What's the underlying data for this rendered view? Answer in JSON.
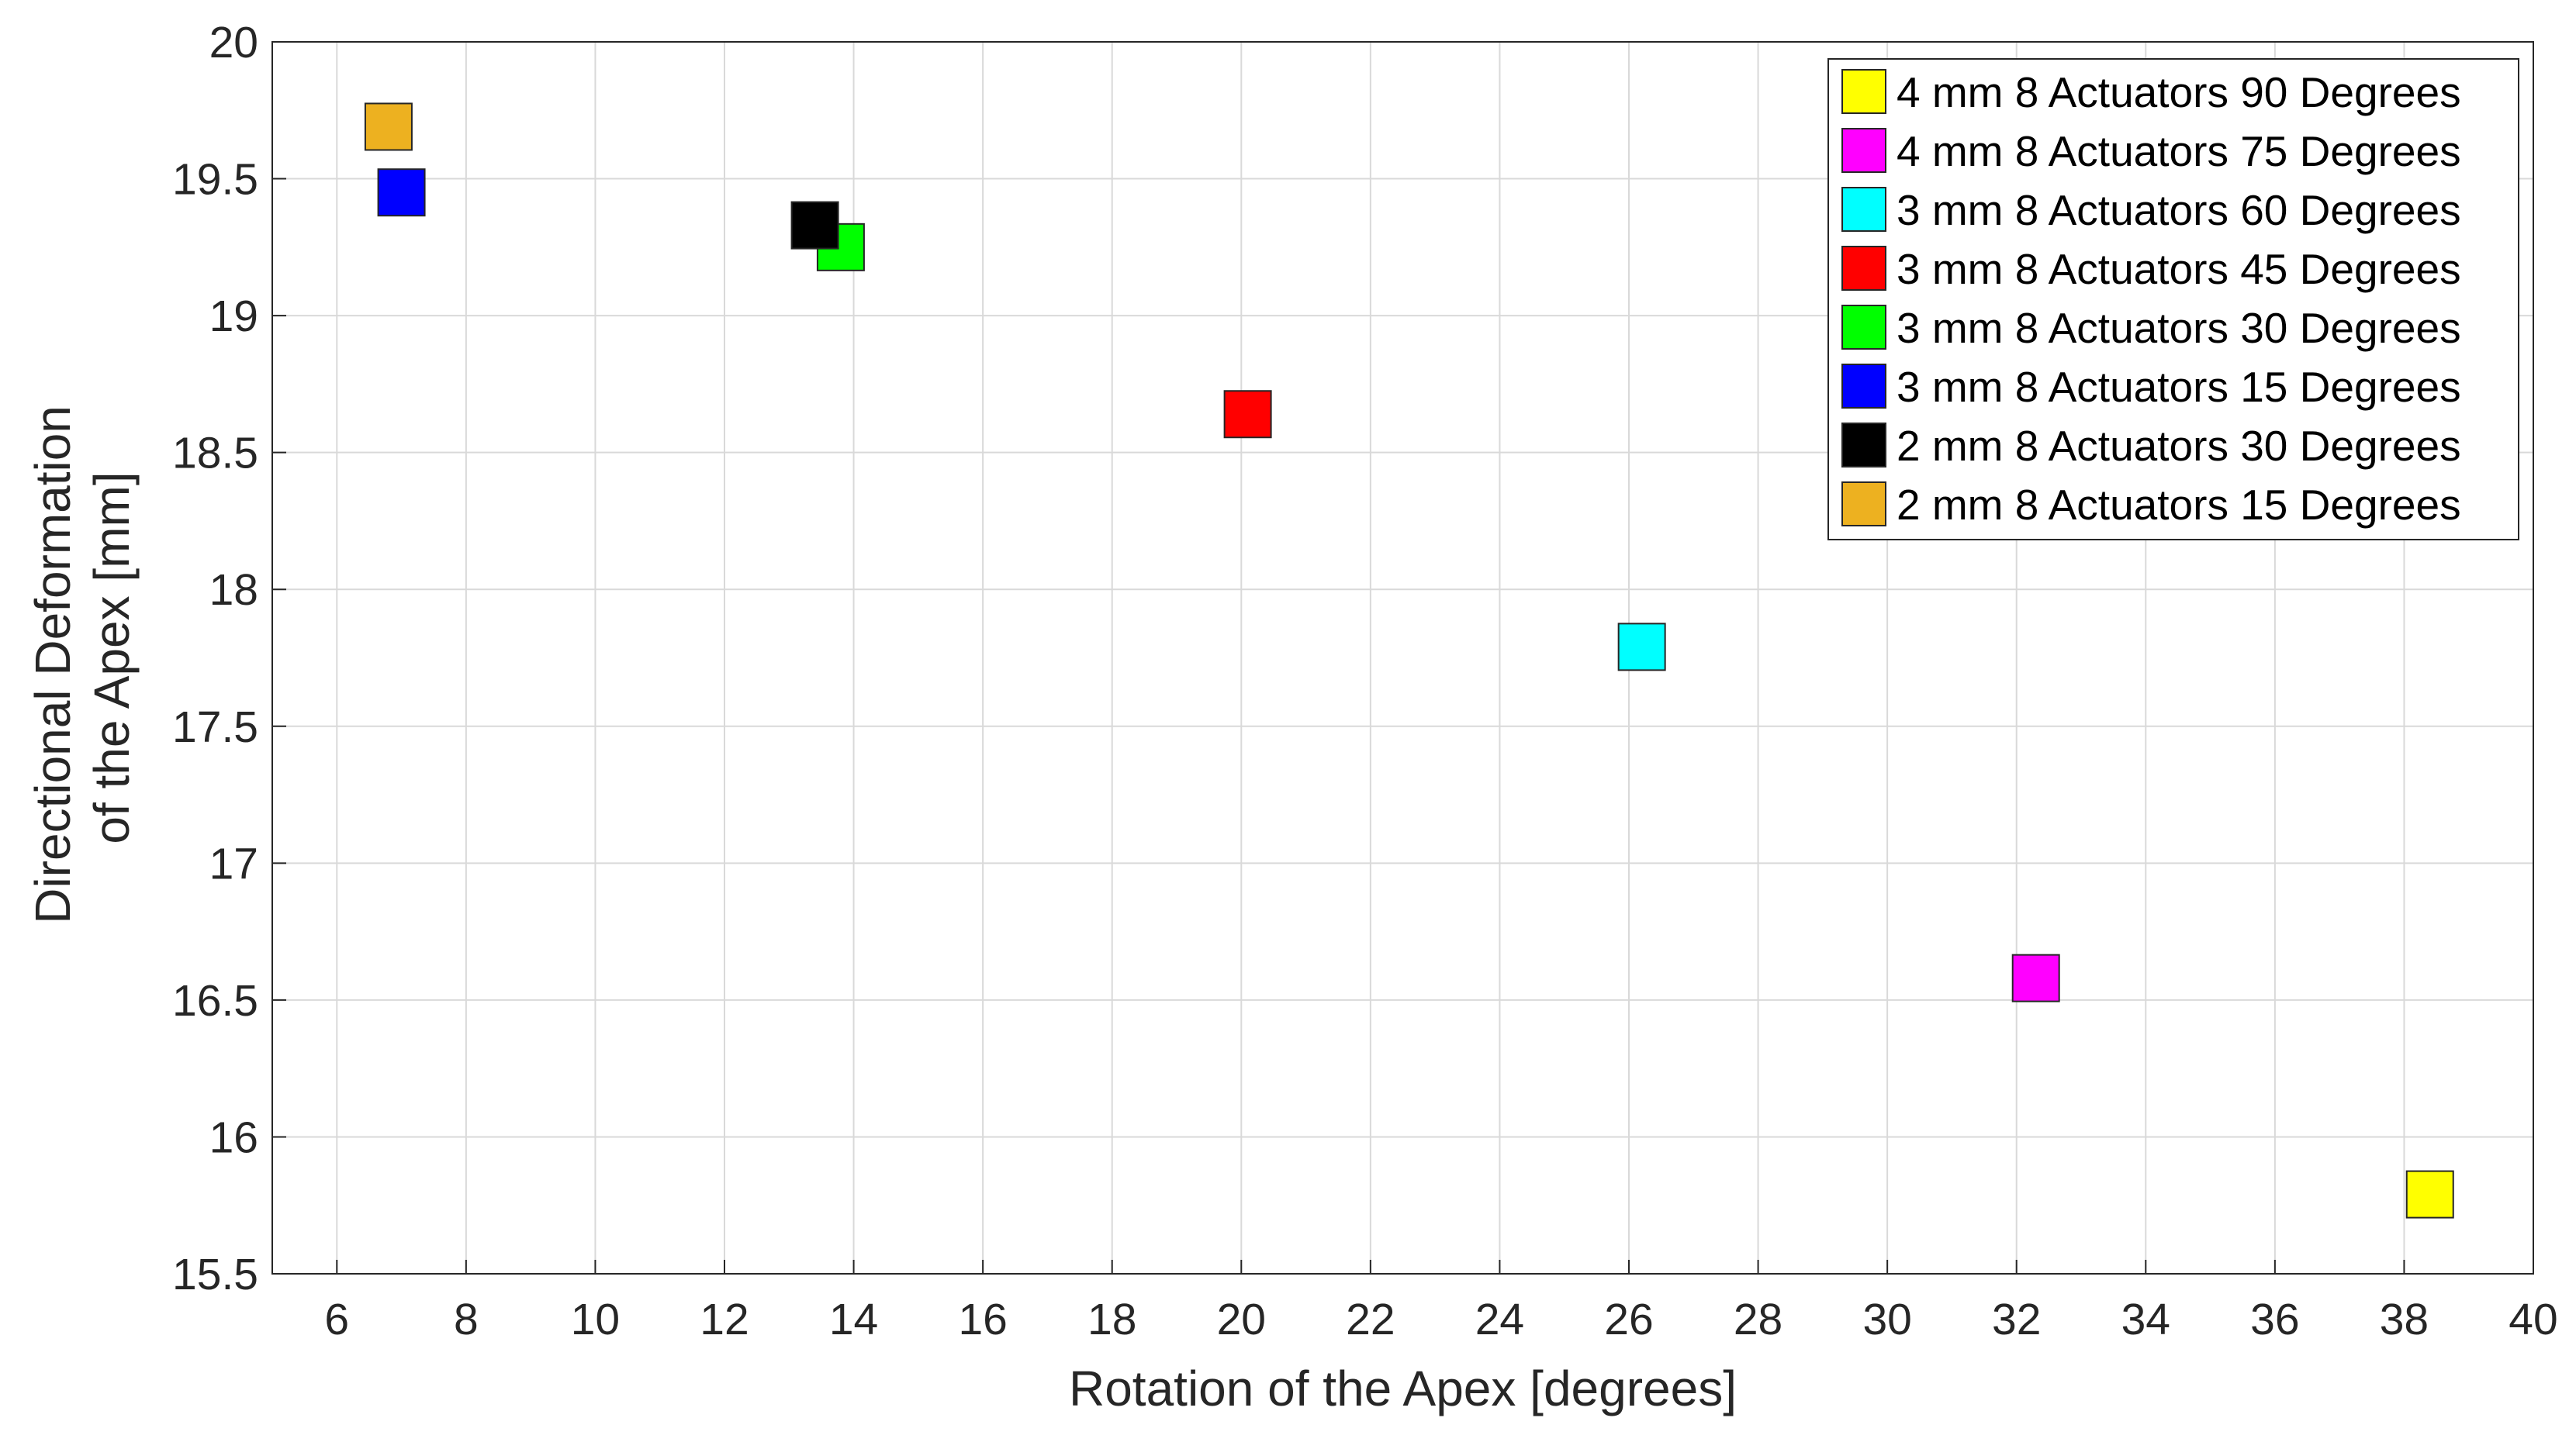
{
  "chart_data": {
    "type": "scatter",
    "xlabel": "Rotation of the Apex [degrees]",
    "ylabel": [
      "Directional Deformation",
      "of the Apex [mm]"
    ],
    "xlim": [
      5,
      40
    ],
    "ylim": [
      15.5,
      20
    ],
    "xticks": [
      6,
      8,
      10,
      12,
      14,
      16,
      18,
      20,
      22,
      24,
      26,
      28,
      30,
      32,
      34,
      36,
      38,
      40
    ],
    "yticks": [
      15.5,
      16,
      16.5,
      17,
      17.5,
      18,
      18.5,
      19,
      19.5,
      20
    ],
    "grid": true,
    "legend_position": "top-right",
    "marker": "square",
    "series": [
      {
        "name": "4 mm 8 Actuators 90 Degrees",
        "color": "#ffff00",
        "x": 38.4,
        "y": 15.79
      },
      {
        "name": "4 mm 8 Actuators 75 Degrees",
        "color": "#ff00ff",
        "x": 32.3,
        "y": 16.58
      },
      {
        "name": "3 mm 8 Actuators 60 Degrees",
        "color": "#00ffff",
        "x": 26.2,
        "y": 17.79
      },
      {
        "name": "3 mm 8 Actuators 45 Degrees",
        "color": "#ff0000",
        "x": 20.1,
        "y": 18.64
      },
      {
        "name": "3 mm 8 Actuators 30 Degrees",
        "color": "#00ff00",
        "x": 13.8,
        "y": 19.25
      },
      {
        "name": "3 mm 8 Actuators 15 Degrees",
        "color": "#0000ff",
        "x": 7.0,
        "y": 19.45
      },
      {
        "name": "2 mm 8 Actuators 30 Degrees",
        "color": "#000000",
        "x": 13.4,
        "y": 19.33
      },
      {
        "name": "2 mm 8 Actuators 15 Degrees",
        "color": "#edb120",
        "x": 6.8,
        "y": 19.69
      }
    ]
  }
}
